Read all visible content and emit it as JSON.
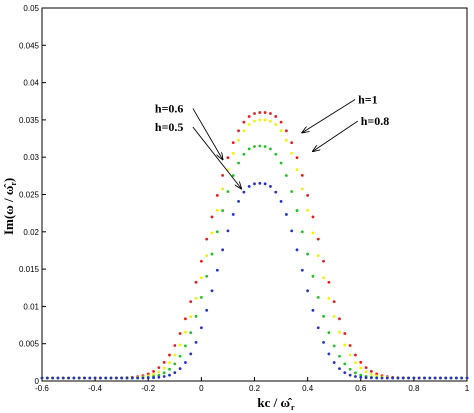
{
  "chart_data": {
    "type": "scatter",
    "xlabel": "kc / ω̂",
    "xlabel_sub": "r",
    "ylabel": "Im(ω / ω̂",
    "ylabel_sub": "r",
    "ylabel_close": ")",
    "xlim": [
      -0.6,
      1
    ],
    "ylim": [
      0,
      0.05
    ],
    "x_ticks": [
      "-0.6",
      "-0.4",
      "-0.2",
      "0",
      "0.2",
      "0.4",
      "0.6",
      "0.8",
      "1"
    ],
    "y_ticks": [
      "0",
      "0.005",
      "0.01",
      "0.015",
      "0.02",
      "0.025",
      "0.03",
      "0.035",
      "0.04",
      "0.045",
      "0.05"
    ],
    "grid": false,
    "legend": "none",
    "series": [
      {
        "name": "h=1",
        "color": "#e8181b",
        "peak_x": 0.23,
        "peak_y": 0.036,
        "width": 0.19
      },
      {
        "name": "h=0.8",
        "color": "#f4f000",
        "peak_x": 0.23,
        "peak_y": 0.035,
        "width": 0.18
      },
      {
        "name": "h=0.6",
        "color": "#22c222",
        "peak_x": 0.22,
        "peak_y": 0.0315,
        "width": 0.165
      },
      {
        "name": "h=0.5",
        "color": "#2430c8",
        "peak_x": 0.22,
        "peak_y": 0.0265,
        "width": 0.15
      }
    ],
    "annotations": [
      {
        "text": "h=0.6",
        "series": "h=0.6",
        "text_x": -0.175,
        "text_y": 0.036,
        "point_x": 0.08,
        "point_y": 0.0297
      },
      {
        "text": "h=0.5",
        "series": "h=0.5",
        "text_x": -0.175,
        "text_y": 0.0335,
        "point_x": 0.15,
        "point_y": 0.0258
      },
      {
        "text": "h=1",
        "series": "h=1",
        "text_x": 0.59,
        "text_y": 0.0372,
        "point_x": 0.38,
        "point_y": 0.0333
      },
      {
        "text": "h=0.8",
        "series": "h=0.8",
        "text_x": 0.6,
        "text_y": 0.0343,
        "point_x": 0.42,
        "point_y": 0.0308
      }
    ]
  }
}
